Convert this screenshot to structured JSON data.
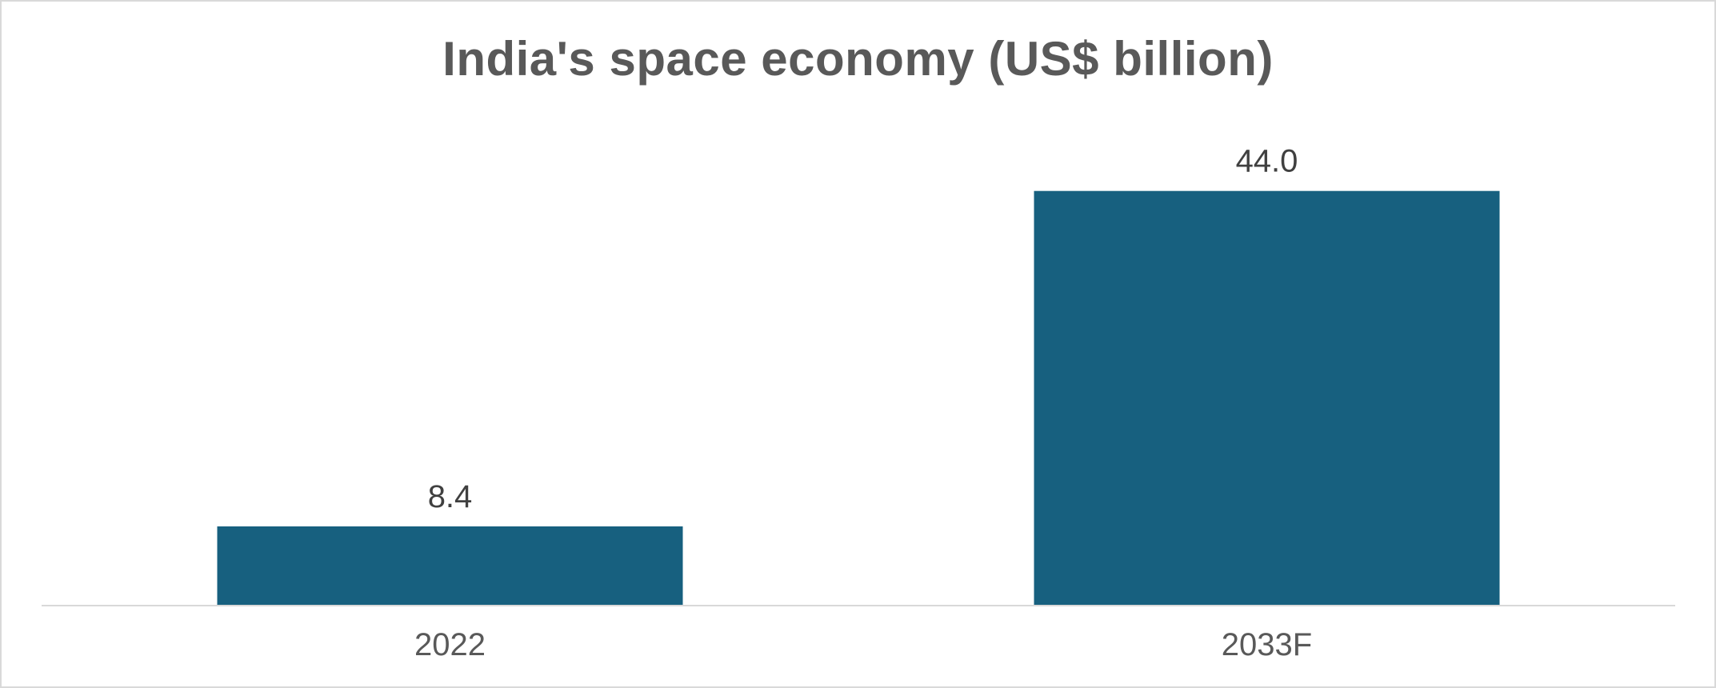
{
  "chart_data": {
    "type": "bar",
    "title": "India's space economy (US$ billion)",
    "categories": [
      "2022",
      "2033F"
    ],
    "values": [
      8.4,
      44.0
    ],
    "data_labels": [
      "8.4",
      "44.0"
    ],
    "xlabel": "",
    "ylabel": "",
    "ylim": [
      0,
      50
    ],
    "grid": false,
    "legend": "none",
    "bar_color": "#17607f",
    "axis_color": "#d9d9d9"
  }
}
